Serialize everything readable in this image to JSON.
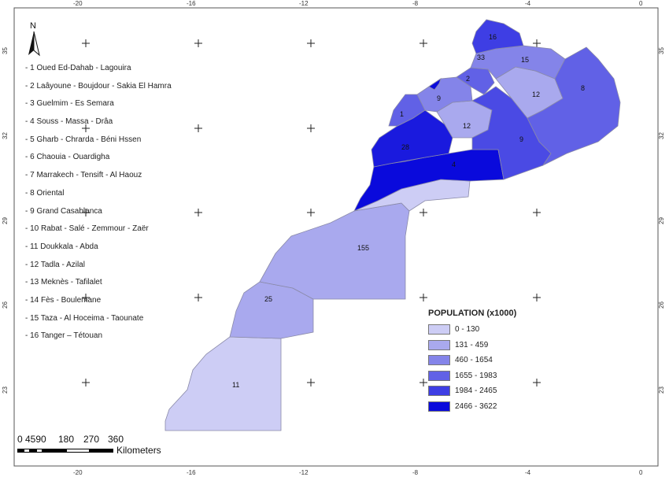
{
  "map": {
    "top_ticks": [
      "-20",
      "-16",
      "-12",
      "-8",
      "-4",
      "0"
    ],
    "bottom_ticks": [
      "-20",
      "-16",
      "-12",
      "-8",
      "-4",
      "0"
    ],
    "left_ticks": [
      "35",
      "32",
      "29",
      "26",
      "23"
    ],
    "right_ticks": [
      "35",
      "32",
      "29",
      "26",
      "23"
    ],
    "north_label": "N",
    "regions": [
      "- 1 Oued Ed-Dahab - Lagouira",
      "- 2 Laâyoune - Boujdour - Sakia El Hamra",
      "- 3 Guelmim - Es Semara",
      "- 4 Souss - Massa - Drâa",
      "- 5 Gharb - Chrarda - Béni Hssen",
      "- 6 Chaouia - Ouardigha",
      "- 7 Marrakech - Tensift - Al Haouz",
      "- 8 Oriental",
      "- 9 Grand Casablanca",
      "- 10 Rabat - Salé - Zemmour - Zaër",
      "- 11 Doukkala - Abda",
      "- 12 Tadla - Azilal",
      "- 13 Meknès - Tafilalet",
      "- 14 Fès - Boulemane",
      "- 15 Taza - Al Hoceima - Taounate",
      "- 16 Tanger – Tétouan"
    ],
    "region_labels": [
      "16",
      "33",
      "15",
      "2",
      "8",
      "9",
      "12",
      "1",
      "12",
      "28",
      "9",
      "4",
      "155",
      "25",
      "11"
    ]
  },
  "legend": {
    "title": "POPULATION (x1000)",
    "classes": [
      {
        "label": "0 - 130",
        "color": "#cdcdf5"
      },
      {
        "label": "131 - 459",
        "color": "#a9a9ee"
      },
      {
        "label": "460 - 1654",
        "color": "#8484e9"
      },
      {
        "label": "1655 - 1983",
        "color": "#6161e6"
      },
      {
        "label": "1984 - 2465",
        "color": "#3e3ee4"
      },
      {
        "label": "2466 - 3622",
        "color": "#0a0adc"
      }
    ]
  },
  "scale": {
    "ticks": [
      "0",
      "4590",
      "180",
      "270",
      "360"
    ],
    "unit": "Kilometers"
  }
}
